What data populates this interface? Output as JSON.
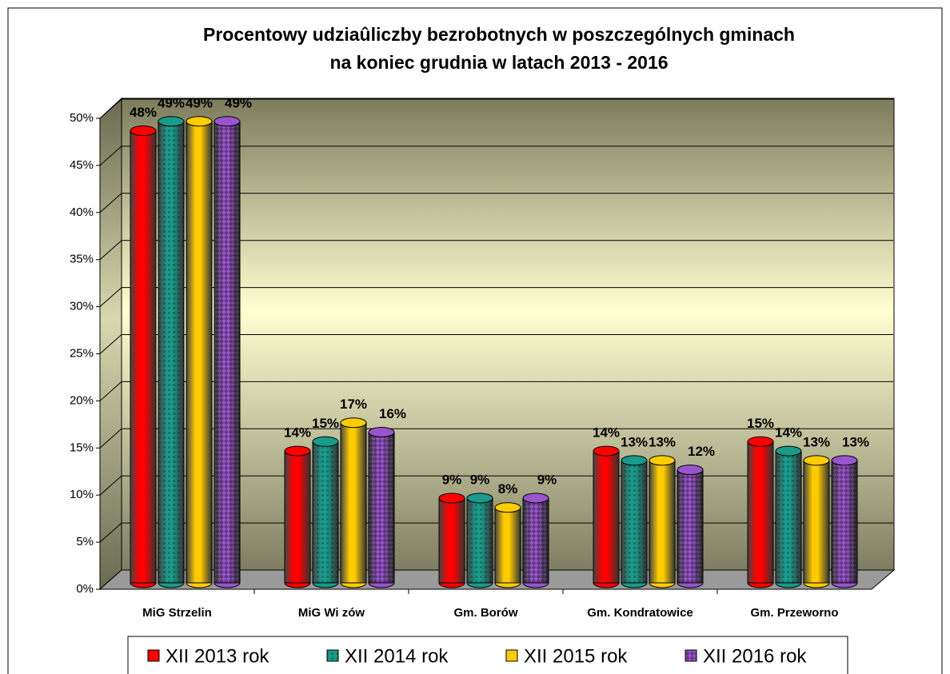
{
  "chart_data": {
    "type": "bar",
    "title": [
      "Procentowy udziaûliczby bezrobotnych w poszczególnych gminach",
      "na koniec  grudnia w latach 2013 - 2016"
    ],
    "categories": [
      "MiG Strzelin",
      "MiG Wi  zów",
      "Gm. Borów",
      "Gm. Kondratowice",
      "Gm. Przeworno"
    ],
    "series": [
      {
        "name": "XII  2013 rok",
        "color": "#ff0000",
        "values": [
          48,
          14,
          9,
          14,
          15
        ],
        "value_labels": [
          "48%",
          "14%",
          "9%",
          "14%",
          "15%"
        ]
      },
      {
        "name": "XII  2014 rok",
        "color": "#1a9a8a",
        "values": [
          49,
          15,
          9,
          13,
          14
        ],
        "value_labels": [
          "49%",
          "15%",
          "9%",
          "13%",
          "14%"
        ]
      },
      {
        "name": "XII  2015 rok",
        "color": "#ffcc00",
        "values": [
          49,
          17,
          8,
          13,
          13
        ],
        "value_labels": [
          "49%",
          "17%",
          "8%",
          "13%",
          "13%"
        ]
      },
      {
        "name": "XII  2016 rok",
        "color": "#9955cc",
        "values": [
          49,
          16,
          9,
          12,
          13
        ],
        "value_labels": [
          "49%",
          "16%",
          "9%",
          "12%",
          "13%"
        ]
      }
    ],
    "ylim": [
      0,
      50
    ],
    "yticks": [
      {
        "value": 0,
        "label": "0%"
      },
      {
        "value": 5,
        "label": "5%"
      },
      {
        "value": 10,
        "label": "10%"
      },
      {
        "value": 15,
        "label": "15%"
      },
      {
        "value": 20,
        "label": "20%"
      },
      {
        "value": 25,
        "label": "25%"
      },
      {
        "value": 30,
        "label": "30%"
      },
      {
        "value": 35,
        "label": "35%"
      },
      {
        "value": 40,
        "label": "40%"
      },
      {
        "value": 45,
        "label": "45%"
      },
      {
        "value": 50,
        "label": "50%"
      }
    ],
    "grid": true,
    "legend": "bottom"
  }
}
